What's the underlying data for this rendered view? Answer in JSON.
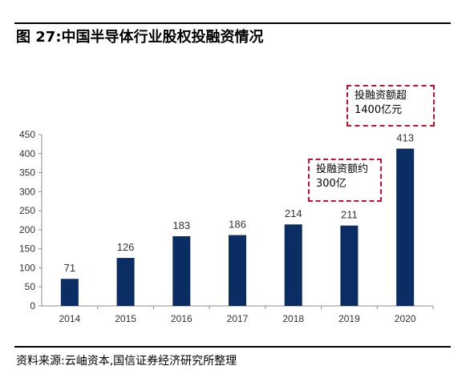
{
  "figure": {
    "title": "图 27:中国半导体行业股权投融资情况",
    "source": "资料来源:云岫资本,国信证券经济研究所整理"
  },
  "annotations": [
    {
      "line1": "投融资额约",
      "line2": "300亿"
    },
    {
      "line1": "投融资额超",
      "line2": "1400亿元"
    }
  ],
  "colors": {
    "bar": "#0a2e63",
    "annotation_border": "#c8102e",
    "axis": "#8c8c8c"
  },
  "chart_data": {
    "type": "bar",
    "title": "",
    "xlabel": "",
    "ylabel": "",
    "categories": [
      "2014",
      "2015",
      "2016",
      "2017",
      "2018",
      "2019",
      "2020"
    ],
    "values": [
      71,
      126,
      183,
      186,
      214,
      211,
      413
    ],
    "ylim": [
      0,
      450
    ],
    "yticks": [
      0,
      50,
      100,
      150,
      200,
      250,
      300,
      350,
      400,
      450
    ],
    "grid": false,
    "legend": "none",
    "data_labels": true
  }
}
